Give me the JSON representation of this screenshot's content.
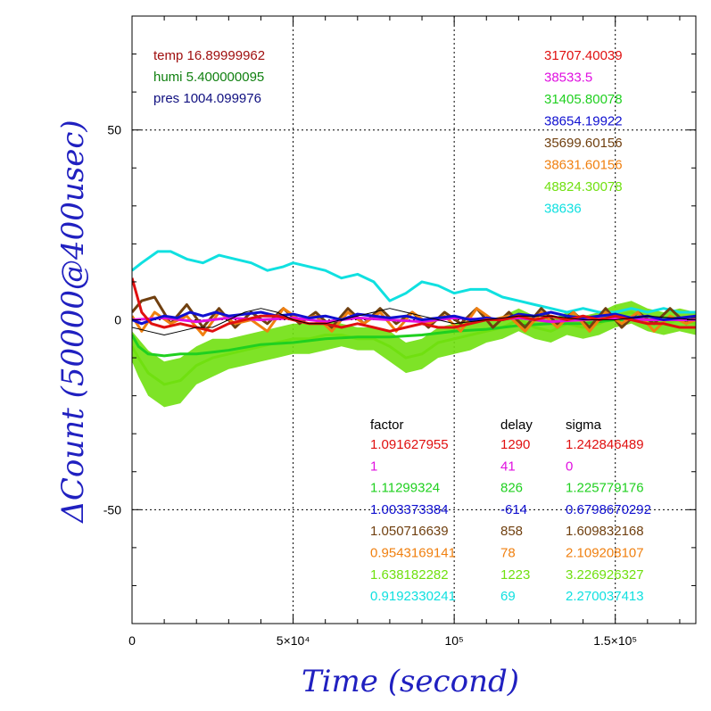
{
  "chart_data": {
    "type": "line",
    "xlabel": "Time (second)",
    "ylabel": "ΔCount (50000@400usec)",
    "xlim": [
      0,
      175000
    ],
    "ylim": [
      -80,
      80
    ],
    "x_ticks": [
      {
        "value": 0,
        "label": "0"
      },
      {
        "value": 50000,
        "label": "5×10⁴"
      },
      {
        "value": 100000,
        "label": "10⁵"
      },
      {
        "value": 150000,
        "label": "1.5×10⁵"
      }
    ],
    "y_ticks": [
      {
        "value": -50,
        "label": "-50"
      },
      {
        "value": 0,
        "label": "0"
      },
      {
        "value": 50,
        "label": "50"
      }
    ],
    "grid": true,
    "env": [
      {
        "text": "temp 16.89999962",
        "color": "#a01010"
      },
      {
        "text": "humi 5.400000095",
        "color": "#108010"
      },
      {
        "text": "pres 1004.099976",
        "color": "#101080"
      }
    ],
    "mean_values": [
      {
        "text": "31707.40039",
        "color": "#e01010"
      },
      {
        "text": "38533.5",
        "color": "#e010e0"
      },
      {
        "text": "31405.80078",
        "color": "#20d020"
      },
      {
        "text": "38654.19922",
        "color": "#1010d0"
      },
      {
        "text": "35699.60156",
        "color": "#704010"
      },
      {
        "text": "38631.60156",
        "color": "#f08010"
      },
      {
        "text": "48824.30078",
        "color": "#70e010"
      },
      {
        "text": "38636",
        "color": "#10e0e0"
      }
    ],
    "table": {
      "headers": [
        "factor",
        "delay",
        "sigma"
      ],
      "rows": [
        {
          "factor": "1.091627955",
          "delay": "1290",
          "sigma": "1.242846489",
          "color": "#e01010"
        },
        {
          "factor": "1",
          "delay": "41",
          "sigma": "0",
          "color": "#e010e0"
        },
        {
          "factor": "1.11299324",
          "delay": "826",
          "sigma": "1.225779176",
          "color": "#20d020"
        },
        {
          "factor": "1.003373384",
          "delay": "-614",
          "sigma": "0.6798670292",
          "color": "#1010d0"
        },
        {
          "factor": "1.050716639",
          "delay": "858",
          "sigma": "1.609832168",
          "color": "#704010"
        },
        {
          "factor": "0.9543169141",
          "delay": "78",
          "sigma": "2.109208107",
          "color": "#f08010"
        },
        {
          "factor": "1.638182282",
          "delay": "1223",
          "sigma": "3.226926327",
          "color": "#70e010"
        },
        {
          "factor": "0.9192330241",
          "delay": "69",
          "sigma": "2.270037413",
          "color": "#10e0e0"
        }
      ]
    },
    "series": [
      {
        "color": "#70e010",
        "band": true,
        "x": [
          0,
          2000,
          5000,
          10000,
          15000,
          20000,
          25000,
          30000,
          35000,
          40000,
          45000,
          50000,
          55000,
          60000,
          65000,
          70000,
          75000,
          80000,
          85000,
          90000,
          95000,
          100000,
          105000,
          110000,
          115000,
          120000,
          125000,
          130000,
          135000,
          140000,
          145000,
          150000,
          155000,
          160000,
          165000,
          170000,
          175000
        ],
        "y": [
          -7,
          -10,
          -14,
          -17,
          -16,
          -12,
          -10,
          -9,
          -8,
          -7,
          -6,
          -5,
          -5,
          -4,
          -4,
          -5,
          -5,
          -7,
          -10,
          -9,
          -6,
          -5,
          -4,
          -3,
          -2,
          0,
          -2,
          -3,
          -1,
          -2,
          -1,
          1,
          2,
          0,
          -1,
          0,
          -1
        ],
        "half_width": [
          4,
          5,
          6,
          6,
          6,
          5,
          5,
          4,
          4,
          4,
          4,
          4,
          4,
          4,
          3,
          3,
          3,
          4,
          4,
          4,
          4,
          4,
          4,
          3,
          3,
          3,
          3,
          3,
          3,
          3,
          3,
          3,
          3,
          3,
          3,
          3,
          3
        ]
      },
      {
        "color": "#20d020",
        "x": [
          0,
          2000,
          5000,
          10000,
          15000,
          20000,
          25000,
          30000,
          40000,
          50000,
          60000,
          70000,
          80000,
          90000,
          100000,
          110000,
          120000,
          130000,
          140000,
          150000,
          160000,
          175000
        ],
        "y": [
          -4,
          -7,
          -9,
          -9.5,
          -9,
          -9,
          -8.5,
          -8,
          -6.5,
          -6,
          -5,
          -4.5,
          -4.5,
          -4,
          -3,
          -2.5,
          -1.5,
          -1,
          -1,
          0,
          0,
          0.5
        ]
      },
      {
        "color": "#10e0e0",
        "x": [
          0,
          3000,
          8000,
          12000,
          17000,
          22000,
          27000,
          32000,
          37000,
          42000,
          47000,
          50000,
          55000,
          60000,
          65000,
          70000,
          75000,
          80000,
          85000,
          90000,
          95000,
          100000,
          105000,
          110000,
          115000,
          120000,
          125000,
          130000,
          135000,
          140000,
          145000,
          150000,
          155000,
          160000,
          165000,
          170000,
          175000
        ],
        "y": [
          13,
          15,
          18,
          18,
          16,
          15,
          17,
          16,
          15,
          13,
          14,
          15,
          14,
          13,
          11,
          12,
          10,
          5,
          7,
          10,
          9,
          7,
          8,
          8,
          6,
          5,
          4,
          3,
          2,
          3,
          2,
          2,
          3,
          2,
          3,
          2,
          2
        ]
      },
      {
        "color": "#704010",
        "x": [
          0,
          3000,
          7000,
          12000,
          17000,
          22000,
          27000,
          32000,
          37000,
          42000,
          47000,
          52000,
          57000,
          62000,
          67000,
          72000,
          77000,
          82000,
          87000,
          92000,
          97000,
          102000,
          107000,
          112000,
          117000,
          122000,
          127000,
          132000,
          137000,
          142000,
          147000,
          152000,
          157000,
          162000,
          167000,
          172000,
          175000
        ],
        "y": [
          2,
          5,
          6,
          -1,
          4,
          -2,
          3,
          -2,
          2,
          -1,
          3,
          -1,
          2,
          -2,
          3,
          -1,
          3,
          -1,
          2,
          -2,
          2,
          -1,
          3,
          -2,
          2,
          -2,
          3,
          -1,
          2,
          -2,
          3,
          -2,
          2,
          -1,
          3,
          -1,
          1
        ]
      },
      {
        "color": "#f08010",
        "x": [
          0,
          3000,
          7000,
          12000,
          17000,
          22000,
          27000,
          32000,
          37000,
          42000,
          47000,
          52000,
          57000,
          62000,
          67000,
          72000,
          77000,
          82000,
          87000,
          92000,
          97000,
          102000,
          107000,
          112000,
          117000,
          122000,
          127000,
          132000,
          137000,
          142000,
          147000,
          152000,
          157000,
          162000,
          167000,
          172000,
          175000
        ],
        "y": [
          1,
          -3,
          2,
          -1,
          1,
          -4,
          2,
          -1,
          0,
          -3,
          3,
          0,
          1,
          -3,
          2,
          -1,
          2,
          -3,
          2,
          -1,
          1,
          -3,
          3,
          0,
          1,
          -3,
          2,
          -2,
          2,
          -3,
          2,
          -1,
          2,
          -3,
          1,
          -1,
          0
        ]
      },
      {
        "color": "#e010e0",
        "x": [
          0,
          10000,
          20000,
          30000,
          40000,
          50000,
          60000,
          70000,
          80000,
          90000,
          100000,
          110000,
          120000,
          130000,
          140000,
          150000,
          160000,
          175000
        ],
        "y": [
          0,
          0.5,
          -0.5,
          0.5,
          0,
          0.5,
          -0.5,
          0.5,
          0,
          -0.5,
          0.5,
          0,
          0.5,
          -0.5,
          0,
          0.5,
          0,
          0
        ]
      },
      {
        "color": "#1010d0",
        "x": [
          0,
          3000,
          6000,
          10000,
          14000,
          18000,
          22000,
          26000,
          30000,
          35000,
          40000,
          45000,
          50000,
          55000,
          60000,
          65000,
          70000,
          75000,
          80000,
          85000,
          90000,
          95000,
          100000,
          105000,
          110000,
          115000,
          120000,
          125000,
          130000,
          135000,
          140000,
          145000,
          150000,
          155000,
          160000,
          165000,
          170000,
          175000
        ],
        "y": [
          0,
          -1,
          0,
          1,
          0.5,
          2,
          1,
          2,
          1,
          1.5,
          2,
          1,
          1.5,
          0.5,
          1,
          0,
          1.5,
          1,
          0.5,
          1,
          0,
          0.5,
          1,
          0,
          0.5,
          0,
          1.5,
          1,
          2,
          1,
          0.5,
          1,
          1.5,
          0.5,
          1,
          0,
          0.5,
          1
        ]
      },
      {
        "color": "#e01010",
        "x": [
          0,
          1000,
          3000,
          6000,
          10000,
          15000,
          20000,
          25000,
          30000,
          35000,
          40000,
          45000,
          50000,
          55000,
          60000,
          65000,
          70000,
          75000,
          80000,
          85000,
          90000,
          95000,
          100000,
          105000,
          110000,
          115000,
          120000,
          125000,
          130000,
          135000,
          140000,
          145000,
          150000,
          155000,
          160000,
          165000,
          170000,
          175000
        ],
        "y": [
          11,
          8,
          2,
          -1,
          -2,
          -1,
          -2,
          -3,
          -1,
          0,
          1,
          1,
          0,
          -1,
          -1,
          -2,
          -1,
          -2,
          -3,
          -2,
          -1,
          -2,
          -2,
          -1,
          0,
          0,
          1,
          0,
          1,
          0,
          1,
          0,
          1,
          0,
          -1,
          -1,
          -2,
          -2
        ]
      },
      {
        "color": "#000000",
        "thin": true,
        "x": [
          0,
          5000,
          10000,
          15000,
          20000,
          25000,
          30000,
          35000,
          40000,
          45000,
          50000,
          55000,
          60000,
          65000,
          70000,
          75000,
          80000,
          85000,
          90000,
          95000,
          100000,
          110000,
          120000,
          130000,
          140000,
          150000,
          160000,
          175000
        ],
        "y": [
          -2,
          -3,
          -4,
          -3,
          -2,
          -2,
          0,
          2,
          3,
          2,
          0,
          -1,
          -1,
          0,
          1,
          2,
          3,
          2,
          1,
          0,
          -1,
          0,
          1,
          1,
          0,
          0,
          1,
          0
        ]
      }
    ]
  }
}
